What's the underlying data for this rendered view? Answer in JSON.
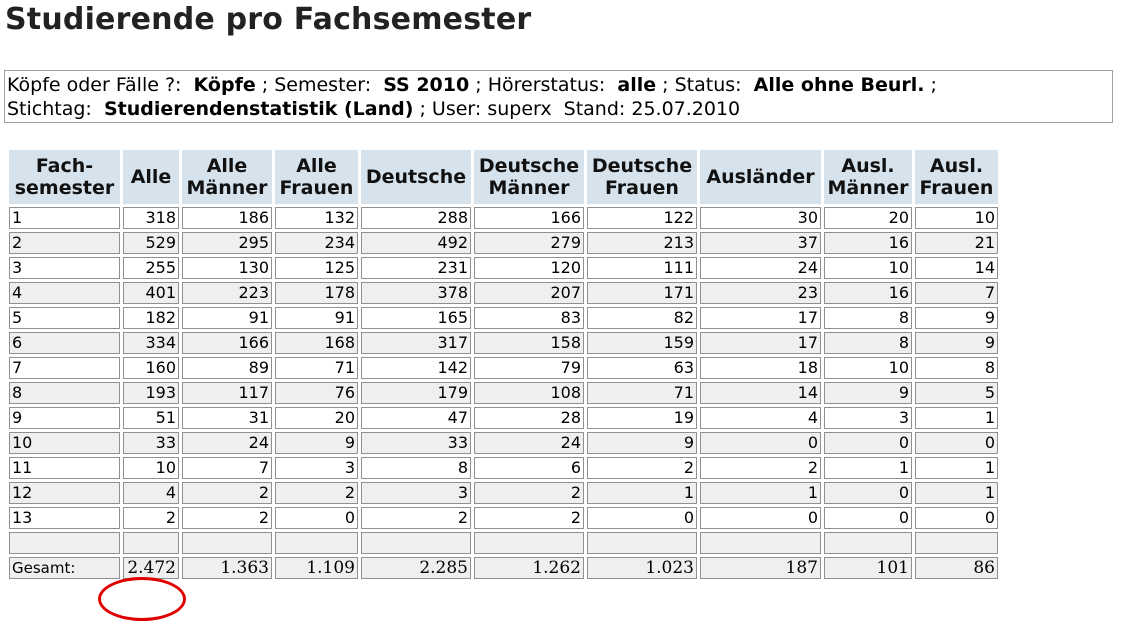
{
  "title": "Studierende pro Fachsemester",
  "info": {
    "line1": {
      "label_koepfe": "Köpfe oder Fälle ?:",
      "value_koepfe": "Köpfe",
      "label_semester": "; Semester:",
      "value_semester": "SS 2010",
      "label_hoererstatus": "; Hörerstatus:",
      "value_hoererstatus": "alle",
      "label_status": "; Status:",
      "value_status": "Alle ohne Beurl.",
      "end": ";"
    },
    "line2": {
      "label_stichtag": "Stichtag:",
      "value_stichtag": "Studierendenstatistik (Land)",
      "label_user": "; User: superx",
      "label_stand": "Stand: 25.07.2010"
    }
  },
  "table": {
    "headers": [
      [
        "Fach-",
        "semester"
      ],
      [
        "Alle"
      ],
      [
        "Alle",
        "Männer"
      ],
      [
        "Alle",
        "Frauen"
      ],
      [
        "Deutsche"
      ],
      [
        "Deutsche",
        "Männer"
      ],
      [
        "Deutsche",
        "Frauen"
      ],
      [
        "Ausländer"
      ],
      [
        "Ausl.",
        "Männer"
      ],
      [
        "Ausl.",
        "Frauen"
      ]
    ],
    "rows": [
      [
        "1",
        "318",
        "186",
        "132",
        "288",
        "166",
        "122",
        "30",
        "20",
        "10"
      ],
      [
        "2",
        "529",
        "295",
        "234",
        "492",
        "279",
        "213",
        "37",
        "16",
        "21"
      ],
      [
        "3",
        "255",
        "130",
        "125",
        "231",
        "120",
        "111",
        "24",
        "10",
        "14"
      ],
      [
        "4",
        "401",
        "223",
        "178",
        "378",
        "207",
        "171",
        "23",
        "16",
        "7"
      ],
      [
        "5",
        "182",
        "91",
        "91",
        "165",
        "83",
        "82",
        "17",
        "8",
        "9"
      ],
      [
        "6",
        "334",
        "166",
        "168",
        "317",
        "158",
        "159",
        "17",
        "8",
        "9"
      ],
      [
        "7",
        "160",
        "89",
        "71",
        "142",
        "79",
        "63",
        "18",
        "10",
        "8"
      ],
      [
        "8",
        "193",
        "117",
        "76",
        "179",
        "108",
        "71",
        "14",
        "9",
        "5"
      ],
      [
        "9",
        "51",
        "31",
        "20",
        "47",
        "28",
        "19",
        "4",
        "3",
        "1"
      ],
      [
        "10",
        "33",
        "24",
        "9",
        "33",
        "24",
        "9",
        "0",
        "0",
        "0"
      ],
      [
        "11",
        "10",
        "7",
        "3",
        "8",
        "6",
        "2",
        "2",
        "1",
        "1"
      ],
      [
        "12",
        "4",
        "2",
        "2",
        "3",
        "2",
        "1",
        "1",
        "0",
        "1"
      ],
      [
        "13",
        "2",
        "2",
        "0",
        "2",
        "2",
        "0",
        "0",
        "0",
        "0"
      ],
      [
        "",
        "",
        "",
        "",
        "",
        "",
        "",
        "",
        "",
        ""
      ]
    ],
    "total": [
      "Gesamt:",
      "2.472",
      "1.363",
      "1.109",
      "2.285",
      "1.262",
      "1.023",
      "187",
      "101",
      "86"
    ]
  },
  "annotation_color": "#e00000"
}
